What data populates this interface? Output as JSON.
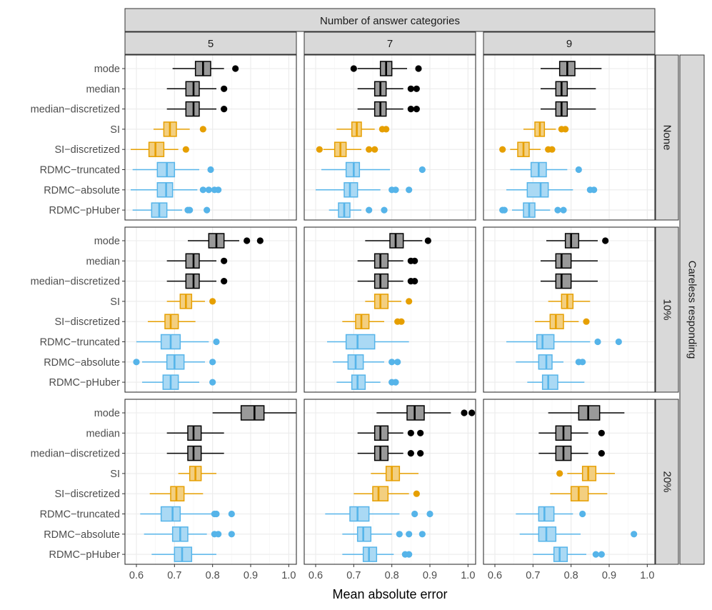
{
  "chart_data": {
    "type": "boxplot",
    "xlabel": "Mean absolute error",
    "column_strip_title": "Number of answer categories",
    "row_strip_title": "Careless responding",
    "columns": [
      "5",
      "7",
      "9"
    ],
    "rows": [
      "None",
      "10%",
      "20%"
    ],
    "xlim": [
      0.57,
      1.02
    ],
    "xticks": [
      0.6,
      0.7,
      0.8,
      0.9,
      1.0
    ],
    "xtick_labels": [
      "0.6",
      "0.7",
      "0.8",
      "0.9",
      "1.0"
    ],
    "methods": [
      "mode",
      "median",
      "median−discretized",
      "SI",
      "SI−discretized",
      "RDMC−truncated",
      "RDMC−absolute",
      "RDMC−pHuber"
    ],
    "method_groups": [
      "baseline",
      "baseline",
      "baseline",
      "SI",
      "SI",
      "RDMC",
      "RDMC",
      "RDMC"
    ],
    "colors": {
      "baseline": {
        "line": "#000000",
        "fill": "#999999"
      },
      "SI": {
        "line": "#e69f00",
        "fill": "#f3cf80"
      },
      "RDMC": {
        "line": "#56b4e9",
        "fill": "#aad9f4"
      }
    },
    "panels": [
      {
        "row": "None",
        "col": "5",
        "boxes": [
          {
            "q1": 0.755,
            "median": 0.775,
            "q3": 0.795,
            "wlo": 0.695,
            "whi": 0.83,
            "out": [
              0.86
            ]
          },
          {
            "q1": 0.73,
            "median": 0.75,
            "q3": 0.765,
            "wlo": 0.68,
            "whi": 0.81,
            "out": [
              0.83
            ]
          },
          {
            "q1": 0.73,
            "median": 0.75,
            "q3": 0.765,
            "wlo": 0.68,
            "whi": 0.81,
            "out": [
              0.83
            ]
          },
          {
            "q1": 0.672,
            "median": 0.688,
            "q3": 0.705,
            "wlo": 0.645,
            "whi": 0.74,
            "out": [
              0.775
            ]
          },
          {
            "q1": 0.633,
            "median": 0.65,
            "q3": 0.672,
            "wlo": 0.585,
            "whi": 0.71,
            "out": [
              0.73
            ]
          },
          {
            "q1": 0.655,
            "median": 0.68,
            "q3": 0.7,
            "wlo": 0.59,
            "whi": 0.765,
            "out": [
              0.795
            ]
          },
          {
            "q1": 0.655,
            "median": 0.678,
            "q3": 0.695,
            "wlo": 0.585,
            "whi": 0.76,
            "out": [
              0.775,
              0.79,
              0.805,
              0.815
            ]
          },
          {
            "q1": 0.64,
            "median": 0.66,
            "q3": 0.68,
            "wlo": 0.59,
            "whi": 0.72,
            "out": [
              0.735,
              0.74,
              0.785
            ]
          }
        ]
      },
      {
        "row": "None",
        "col": "7",
        "boxes": [
          {
            "q1": 0.77,
            "median": 0.785,
            "q3": 0.8,
            "wlo": 0.71,
            "whi": 0.84,
            "out": [
              0.7,
              0.87
            ]
          },
          {
            "q1": 0.755,
            "median": 0.77,
            "q3": 0.785,
            "wlo": 0.71,
            "whi": 0.83,
            "out": [
              0.85,
              0.865
            ]
          },
          {
            "q1": 0.755,
            "median": 0.77,
            "q3": 0.785,
            "wlo": 0.71,
            "whi": 0.83,
            "out": [
              0.85,
              0.865
            ]
          },
          {
            "q1": 0.695,
            "median": 0.708,
            "q3": 0.72,
            "wlo": 0.655,
            "whi": 0.755,
            "out": [
              0.775,
              0.785
            ]
          },
          {
            "q1": 0.65,
            "median": 0.665,
            "q3": 0.68,
            "wlo": 0.62,
            "whi": 0.72,
            "out": [
              0.61,
              0.74,
              0.755
            ]
          },
          {
            "q1": 0.68,
            "median": 0.7,
            "q3": 0.715,
            "wlo": 0.615,
            "whi": 0.795,
            "out": [
              0.88
            ]
          },
          {
            "q1": 0.675,
            "median": 0.69,
            "q3": 0.71,
            "wlo": 0.6,
            "whi": 0.77,
            "out": [
              0.8,
              0.81,
              0.845
            ]
          },
          {
            "q1": 0.66,
            "median": 0.675,
            "q3": 0.69,
            "wlo": 0.635,
            "whi": 0.72,
            "out": [
              0.74,
              0.78
            ]
          }
        ]
      },
      {
        "row": "None",
        "col": "9",
        "boxes": [
          {
            "q1": 0.77,
            "median": 0.79,
            "q3": 0.81,
            "wlo": 0.72,
            "whi": 0.88,
            "out": []
          },
          {
            "q1": 0.76,
            "median": 0.775,
            "q3": 0.79,
            "wlo": 0.72,
            "whi": 0.865,
            "out": []
          },
          {
            "q1": 0.76,
            "median": 0.775,
            "q3": 0.79,
            "wlo": 0.72,
            "whi": 0.865,
            "out": []
          },
          {
            "q1": 0.705,
            "median": 0.718,
            "q3": 0.73,
            "wlo": 0.675,
            "whi": 0.76,
            "out": [
              0.775,
              0.785
            ]
          },
          {
            "q1": 0.66,
            "median": 0.675,
            "q3": 0.69,
            "wlo": 0.64,
            "whi": 0.72,
            "out": [
              0.62,
              0.74,
              0.75
            ]
          },
          {
            "q1": 0.695,
            "median": 0.715,
            "q3": 0.735,
            "wlo": 0.64,
            "whi": 0.79,
            "out": [
              0.82
            ]
          },
          {
            "q1": 0.685,
            "median": 0.72,
            "q3": 0.74,
            "wlo": 0.63,
            "whi": 0.805,
            "out": [
              0.85,
              0.86
            ]
          },
          {
            "q1": 0.675,
            "median": 0.69,
            "q3": 0.705,
            "wlo": 0.645,
            "whi": 0.745,
            "out": [
              0.62,
              0.625,
              0.765,
              0.78
            ]
          }
        ]
      },
      {
        "row": "10%",
        "col": "5",
        "boxes": [
          {
            "q1": 0.79,
            "median": 0.81,
            "q3": 0.83,
            "wlo": 0.735,
            "whi": 0.87,
            "out": [
              0.89,
              0.925
            ]
          },
          {
            "q1": 0.73,
            "median": 0.75,
            "q3": 0.765,
            "wlo": 0.68,
            "whi": 0.81,
            "out": [
              0.83
            ]
          },
          {
            "q1": 0.73,
            "median": 0.75,
            "q3": 0.765,
            "wlo": 0.68,
            "whi": 0.81,
            "out": [
              0.83
            ]
          },
          {
            "q1": 0.715,
            "median": 0.73,
            "q3": 0.745,
            "wlo": 0.68,
            "whi": 0.78,
            "out": [
              0.8
            ]
          },
          {
            "q1": 0.675,
            "median": 0.69,
            "q3": 0.71,
            "wlo": 0.63,
            "whi": 0.755,
            "out": []
          },
          {
            "q1": 0.665,
            "median": 0.69,
            "q3": 0.715,
            "wlo": 0.6,
            "whi": 0.79,
            "out": [
              0.81
            ]
          },
          {
            "q1": 0.68,
            "median": 0.7,
            "q3": 0.725,
            "wlo": 0.615,
            "whi": 0.78,
            "out": [
              0.6,
              0.8
            ]
          },
          {
            "q1": 0.67,
            "median": 0.69,
            "q3": 0.71,
            "wlo": 0.615,
            "whi": 0.765,
            "out": [
              0.8
            ]
          }
        ]
      },
      {
        "row": "10%",
        "col": "7",
        "boxes": [
          {
            "q1": 0.795,
            "median": 0.81,
            "q3": 0.83,
            "wlo": 0.73,
            "whi": 0.88,
            "out": [
              0.895
            ]
          },
          {
            "q1": 0.755,
            "median": 0.77,
            "q3": 0.79,
            "wlo": 0.71,
            "whi": 0.83,
            "out": [
              0.85,
              0.86
            ]
          },
          {
            "q1": 0.755,
            "median": 0.77,
            "q3": 0.79,
            "wlo": 0.71,
            "whi": 0.83,
            "out": [
              0.85,
              0.86
            ]
          },
          {
            "q1": 0.755,
            "median": 0.77,
            "q3": 0.79,
            "wlo": 0.73,
            "whi": 0.825,
            "out": [
              0.845
            ]
          },
          {
            "q1": 0.705,
            "median": 0.72,
            "q3": 0.74,
            "wlo": 0.67,
            "whi": 0.78,
            "out": [
              0.815,
              0.825
            ]
          },
          {
            "q1": 0.68,
            "median": 0.71,
            "q3": 0.755,
            "wlo": 0.63,
            "whi": 0.845,
            "out": []
          },
          {
            "q1": 0.685,
            "median": 0.705,
            "q3": 0.725,
            "wlo": 0.645,
            "whi": 0.78,
            "out": [
              0.8,
              0.815
            ]
          },
          {
            "q1": 0.695,
            "median": 0.71,
            "q3": 0.73,
            "wlo": 0.655,
            "whi": 0.77,
            "out": [
              0.8,
              0.81
            ]
          }
        ]
      },
      {
        "row": "10%",
        "col": "9",
        "boxes": [
          {
            "q1": 0.785,
            "median": 0.8,
            "q3": 0.82,
            "wlo": 0.735,
            "whi": 0.87,
            "out": [
              0.89
            ]
          },
          {
            "q1": 0.76,
            "median": 0.775,
            "q3": 0.8,
            "wlo": 0.72,
            "whi": 0.87,
            "out": []
          },
          {
            "q1": 0.76,
            "median": 0.775,
            "q3": 0.8,
            "wlo": 0.72,
            "whi": 0.87,
            "out": []
          },
          {
            "q1": 0.775,
            "median": 0.79,
            "q3": 0.805,
            "wlo": 0.74,
            "whi": 0.85,
            "out": []
          },
          {
            "q1": 0.745,
            "median": 0.76,
            "q3": 0.78,
            "wlo": 0.705,
            "whi": 0.82,
            "out": [
              0.84
            ]
          },
          {
            "q1": 0.71,
            "median": 0.725,
            "q3": 0.755,
            "wlo": 0.63,
            "whi": 0.85,
            "out": [
              0.87,
              0.925
            ]
          },
          {
            "q1": 0.715,
            "median": 0.735,
            "q3": 0.75,
            "wlo": 0.655,
            "whi": 0.78,
            "out": [
              0.82,
              0.83
            ]
          },
          {
            "q1": 0.725,
            "median": 0.74,
            "q3": 0.765,
            "wlo": 0.685,
            "whi": 0.835,
            "out": []
          }
        ]
      },
      {
        "row": "20%",
        "col": "5",
        "boxes": [
          {
            "q1": 0.875,
            "median": 0.91,
            "q3": 0.935,
            "wlo": 0.8,
            "whi": 1.02,
            "out": []
          },
          {
            "q1": 0.735,
            "median": 0.75,
            "q3": 0.77,
            "wlo": 0.68,
            "whi": 0.83,
            "out": []
          },
          {
            "q1": 0.735,
            "median": 0.75,
            "q3": 0.77,
            "wlo": 0.68,
            "whi": 0.83,
            "out": []
          },
          {
            "q1": 0.74,
            "median": 0.755,
            "q3": 0.77,
            "wlo": 0.71,
            "whi": 0.81,
            "out": []
          },
          {
            "q1": 0.69,
            "median": 0.705,
            "q3": 0.725,
            "wlo": 0.635,
            "whi": 0.775,
            "out": []
          },
          {
            "q1": 0.665,
            "median": 0.695,
            "q3": 0.715,
            "wlo": 0.61,
            "whi": 0.8,
            "out": [
              0.805,
              0.81,
              0.85
            ]
          },
          {
            "q1": 0.695,
            "median": 0.715,
            "q3": 0.735,
            "wlo": 0.62,
            "whi": 0.785,
            "out": [
              0.805,
              0.815,
              0.85
            ]
          },
          {
            "q1": 0.7,
            "median": 0.72,
            "q3": 0.745,
            "wlo": 0.64,
            "whi": 0.81,
            "out": []
          }
        ]
      },
      {
        "row": "20%",
        "col": "7",
        "boxes": [
          {
            "q1": 0.84,
            "median": 0.86,
            "q3": 0.885,
            "wlo": 0.76,
            "whi": 0.955,
            "out": [
              0.99,
              1.01
            ]
          },
          {
            "q1": 0.755,
            "median": 0.77,
            "q3": 0.79,
            "wlo": 0.71,
            "whi": 0.83,
            "out": [
              0.85,
              0.875
            ]
          },
          {
            "q1": 0.755,
            "median": 0.77,
            "q3": 0.79,
            "wlo": 0.71,
            "whi": 0.83,
            "out": [
              0.85,
              0.875
            ]
          },
          {
            "q1": 0.785,
            "median": 0.8,
            "q3": 0.82,
            "wlo": 0.745,
            "whi": 0.87,
            "out": []
          },
          {
            "q1": 0.75,
            "median": 0.765,
            "q3": 0.79,
            "wlo": 0.7,
            "whi": 0.845,
            "out": [
              0.865
            ]
          },
          {
            "q1": 0.69,
            "median": 0.71,
            "q3": 0.74,
            "wlo": 0.625,
            "whi": 0.82,
            "out": [
              0.86,
              0.9
            ]
          },
          {
            "q1": 0.71,
            "median": 0.725,
            "q3": 0.745,
            "wlo": 0.67,
            "whi": 0.8,
            "out": [
              0.82,
              0.845,
              0.88
            ]
          },
          {
            "q1": 0.725,
            "median": 0.74,
            "q3": 0.76,
            "wlo": 0.67,
            "whi": 0.805,
            "out": [
              0.835,
              0.845
            ]
          }
        ]
      },
      {
        "row": "20%",
        "col": "9",
        "boxes": [
          {
            "q1": 0.82,
            "median": 0.845,
            "q3": 0.875,
            "wlo": 0.74,
            "whi": 0.94,
            "out": []
          },
          {
            "q1": 0.76,
            "median": 0.78,
            "q3": 0.8,
            "wlo": 0.715,
            "whi": 0.845,
            "out": [
              0.88
            ]
          },
          {
            "q1": 0.76,
            "median": 0.78,
            "q3": 0.8,
            "wlo": 0.715,
            "whi": 0.845,
            "out": [
              0.88
            ]
          },
          {
            "q1": 0.83,
            "median": 0.845,
            "q3": 0.865,
            "wlo": 0.79,
            "whi": 0.915,
            "out": [
              0.77
            ]
          },
          {
            "q1": 0.8,
            "median": 0.82,
            "q3": 0.845,
            "wlo": 0.745,
            "whi": 0.895,
            "out": []
          },
          {
            "q1": 0.715,
            "median": 0.73,
            "q3": 0.755,
            "wlo": 0.655,
            "whi": 0.805,
            "out": [
              0.83
            ]
          },
          {
            "q1": 0.715,
            "median": 0.735,
            "q3": 0.76,
            "wlo": 0.665,
            "whi": 0.825,
            "out": [
              0.965
            ]
          },
          {
            "q1": 0.755,
            "median": 0.77,
            "q3": 0.79,
            "wlo": 0.7,
            "whi": 0.84,
            "out": [
              0.865,
              0.88
            ]
          }
        ]
      }
    ]
  }
}
